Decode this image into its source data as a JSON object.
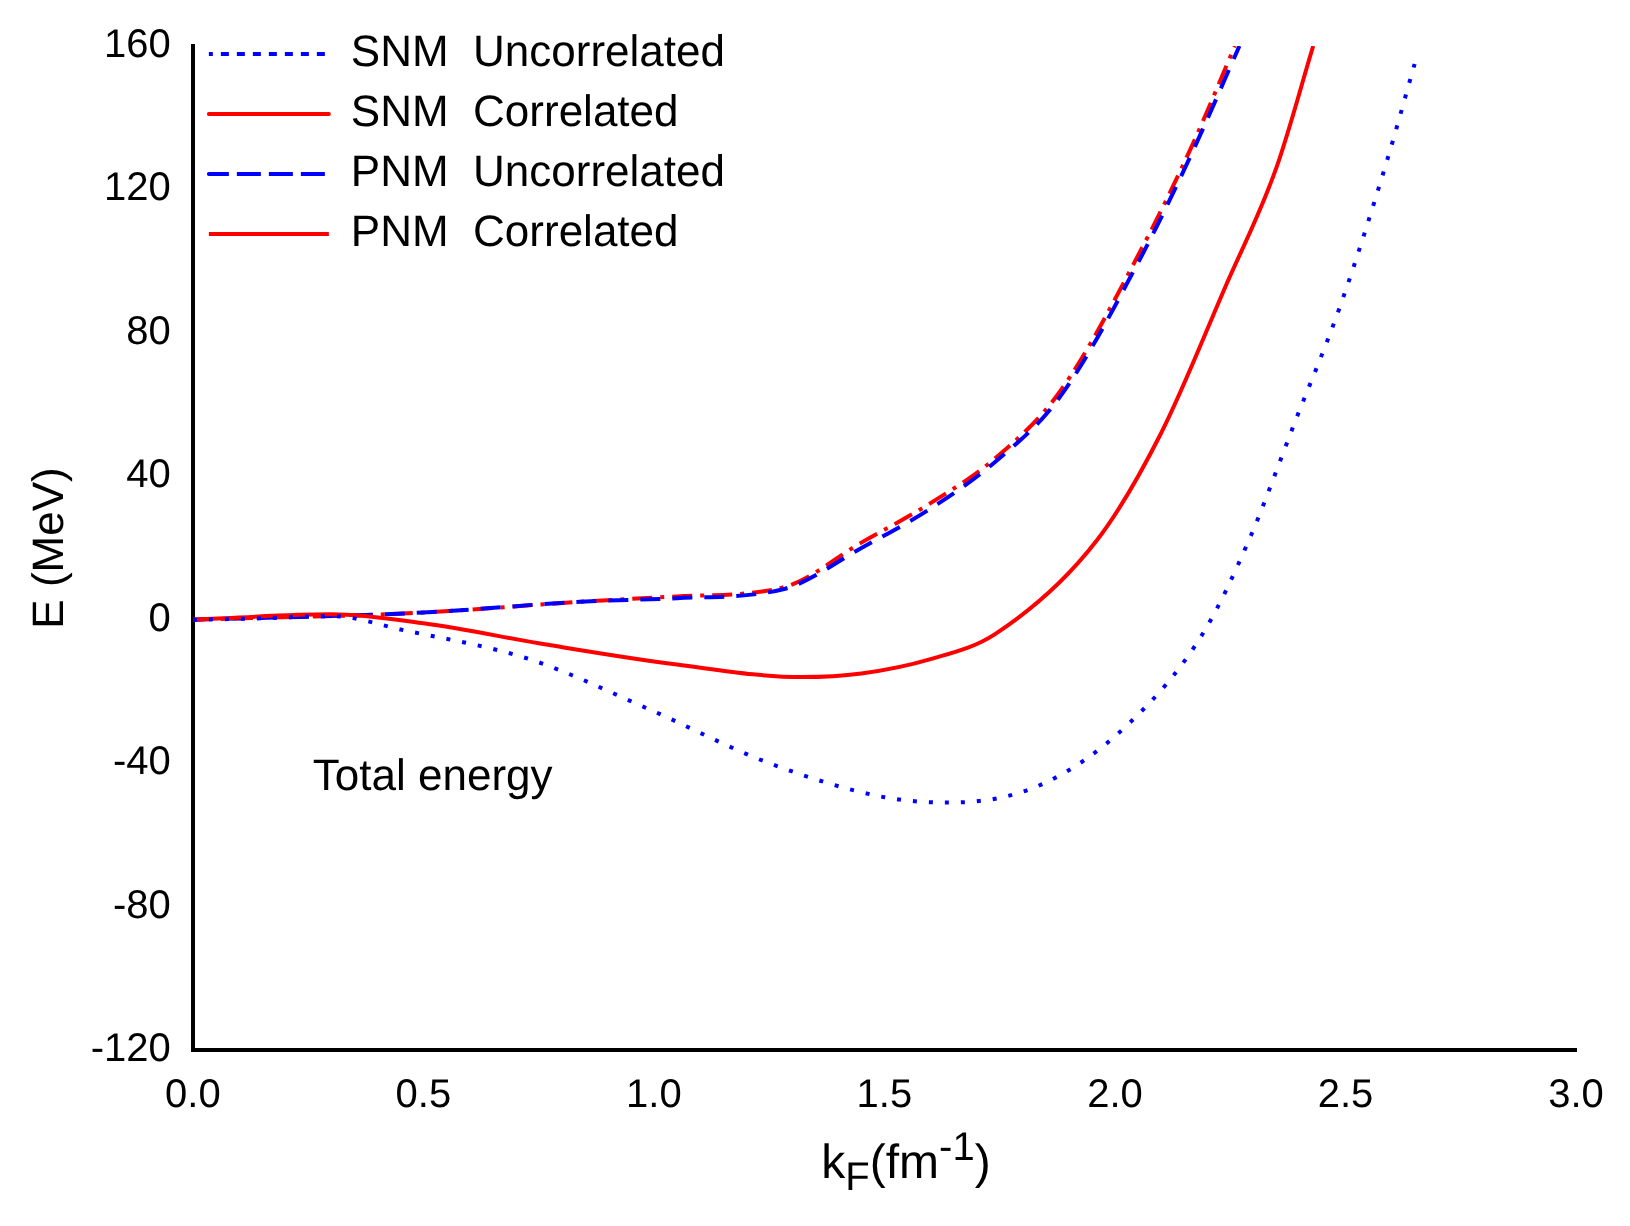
{
  "chart_data": {
    "type": "line",
    "xlabel": "k$_{F}$(fm$^{-1}$)",
    "ylabel": "E (MeV)",
    "annotations": [
      "Total energy"
    ],
    "xlim": [
      0,
      3
    ],
    "xticks": [
      {
        "value": 0,
        "label": "0.0"
      },
      {
        "value": 0.5,
        "label": "0.5"
      },
      {
        "value": 1,
        "label": "1.0"
      },
      {
        "value": 1.5,
        "label": "1.5"
      },
      {
        "value": 2,
        "label": "2.0"
      },
      {
        "value": 2.5,
        "label": "2.5"
      },
      {
        "value": 3,
        "label": "3.0"
      }
    ],
    "ylim": [
      -120,
      160
    ],
    "yticks": [
      -120,
      -80,
      -40,
      0,
      40,
      80,
      120,
      160
    ],
    "grid": false,
    "legend": "top left",
    "marker": "none",
    "series": [
      {
        "name": "SNM  Uncorrelated",
        "color": "#0000ff",
        "line_style": "dotted",
        "x": [
          0,
          0.12,
          0.3,
          0.46,
          0.73,
          0.99,
          1.25,
          1.5,
          1.64,
          1.84,
          2.03,
          2.19,
          2.29,
          2.39,
          2.49,
          2.59,
          2.65
        ],
        "values": [
          0,
          0.3,
          1,
          -3,
          -11,
          -25,
          -40,
          -49.5,
          -51,
          -46,
          -29,
          -4,
          22,
          55,
          88,
          128,
          155
        ]
      },
      {
        "name": "SNM  Correlated",
        "color": "#ff0000",
        "line_style": "solid",
        "x": [
          0,
          0.3,
          0.5,
          0.77,
          1.05,
          1.32,
          1.45,
          1.6,
          1.74,
          1.96,
          2.1,
          2.24,
          2.35,
          2.43
        ],
        "values": [
          0,
          1.5,
          -1,
          -7,
          -12.5,
          -16,
          -15,
          -11,
          -4,
          22,
          52,
          93,
          126,
          160
        ]
      },
      {
        "name": "PNM  Uncorrelated",
        "color": "#0000ff",
        "line_style": "dashed",
        "x": [
          0,
          0.5,
          0.84,
          1.05,
          1.28,
          1.45,
          1.6,
          1.74,
          1.88,
          2.06,
          2.17,
          2.27
        ],
        "values": [
          0,
          2,
          5,
          6,
          8.5,
          20,
          31,
          44,
          62,
          102,
          131,
          160
        ]
      },
      {
        "name": "PNM  Correlated",
        "color": "#ff0000",
        "line_style": "dashdot",
        "x": [
          0,
          0.5,
          0.84,
          1.05,
          1.28,
          1.45,
          1.6,
          1.74,
          1.88,
          2.06,
          2.17,
          2.26
        ],
        "values": [
          0,
          2,
          5,
          6.5,
          9,
          21.5,
          32.5,
          45,
          63.5,
          104,
          133,
          160
        ]
      }
    ]
  }
}
